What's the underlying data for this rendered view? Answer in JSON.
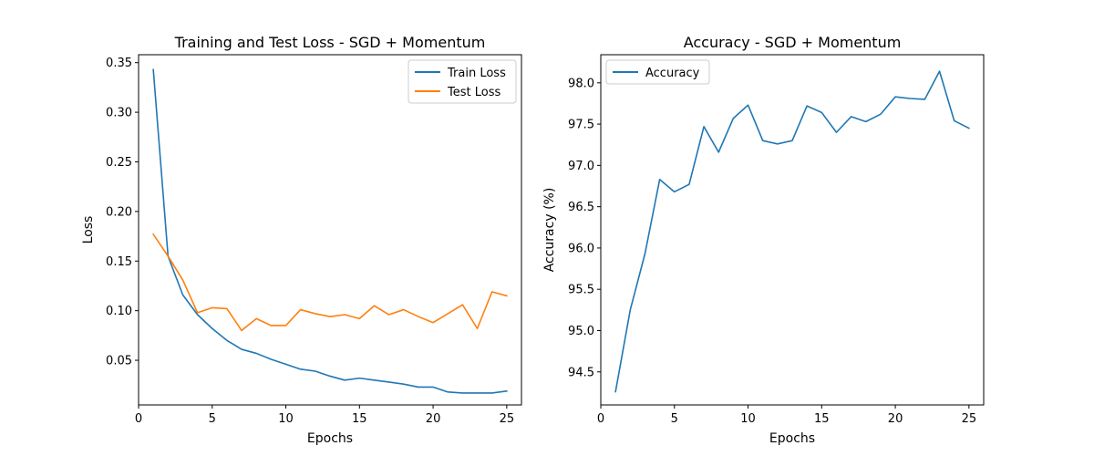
{
  "chart_data": [
    {
      "type": "line",
      "title": "Training and Test Loss - SGD + Momentum",
      "xlabel": "Epochs",
      "ylabel": "Loss",
      "xlim": [
        0,
        26
      ],
      "ylim": [
        0.005,
        0.358
      ],
      "xticks": [
        0,
        5,
        10,
        15,
        20,
        25
      ],
      "yticks": [
        0.05,
        0.1,
        0.15,
        0.2,
        0.25,
        0.3,
        0.35
      ],
      "ytick_labels": [
        "0.05",
        "0.10",
        "0.15",
        "0.20",
        "0.25",
        "0.30",
        "0.35"
      ],
      "grid": false,
      "legend_position": "top-right",
      "x": [
        1,
        2,
        3,
        4,
        5,
        6,
        7,
        8,
        9,
        10,
        11,
        12,
        13,
        14,
        15,
        16,
        17,
        18,
        19,
        20,
        21,
        22,
        23,
        24,
        25
      ],
      "series": [
        {
          "name": "Train Loss",
          "color": "#1f77b4",
          "values": [
            0.343,
            0.155,
            0.116,
            0.096,
            0.082,
            0.07,
            0.061,
            0.057,
            0.051,
            0.046,
            0.041,
            0.039,
            0.034,
            0.03,
            0.032,
            0.03,
            0.028,
            0.026,
            0.023,
            0.023,
            0.018,
            0.017,
            0.017,
            0.017,
            0.019
          ]
        },
        {
          "name": "Test Loss",
          "color": "#ff7f0e",
          "values": [
            0.177,
            0.155,
            0.131,
            0.098,
            0.103,
            0.102,
            0.08,
            0.092,
            0.085,
            0.085,
            0.101,
            0.097,
            0.094,
            0.096,
            0.092,
            0.105,
            0.096,
            0.101,
            0.094,
            0.088,
            0.097,
            0.106,
            0.082,
            0.119,
            0.115
          ]
        }
      ]
    },
    {
      "type": "line",
      "title": "Accuracy - SGD + Momentum",
      "xlabel": "Epochs",
      "ylabel": "Accuracy (%)",
      "xlim": [
        0,
        26
      ],
      "ylim": [
        94.1,
        98.34
      ],
      "xticks": [
        0,
        5,
        10,
        15,
        20,
        25
      ],
      "yticks": [
        94.5,
        95.0,
        95.5,
        96.0,
        96.5,
        97.0,
        97.5,
        98.0
      ],
      "ytick_labels": [
        "94.5",
        "95.0",
        "95.5",
        "96.0",
        "96.5",
        "97.0",
        "97.5",
        "98.0"
      ],
      "grid": false,
      "legend_position": "top-left",
      "x": [
        1,
        2,
        3,
        4,
        5,
        6,
        7,
        8,
        9,
        10,
        11,
        12,
        13,
        14,
        15,
        16,
        17,
        18,
        19,
        20,
        21,
        22,
        23,
        24,
        25
      ],
      "series": [
        {
          "name": "Accuracy",
          "color": "#1f77b4",
          "values": [
            94.26,
            95.25,
            95.93,
            96.83,
            96.68,
            96.77,
            97.47,
            97.16,
            97.57,
            97.73,
            97.3,
            97.26,
            97.3,
            97.72,
            97.64,
            97.4,
            97.59,
            97.53,
            97.62,
            97.83,
            97.81,
            97.8,
            98.14,
            97.54,
            97.45
          ]
        }
      ]
    }
  ]
}
